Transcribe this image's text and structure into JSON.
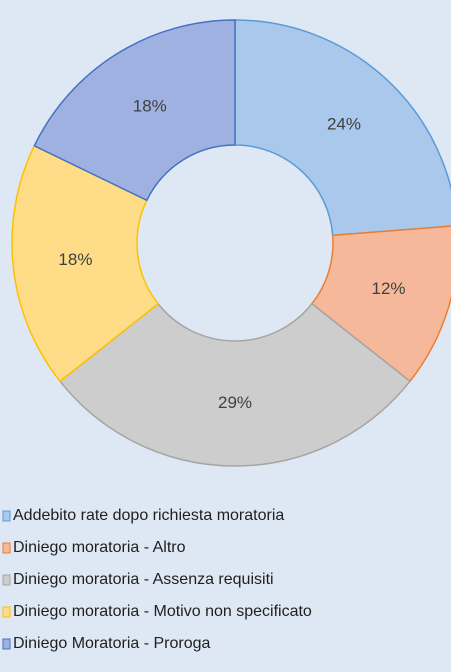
{
  "chart_data": {
    "type": "donut",
    "categories": [
      "Addebito rate dopo richiesta moratoria",
      "Diniego moratoria - Altro",
      "Diniego moratoria - Assenza requisiti",
      "Diniego moratoria - Motivo non specificato",
      "Diniego Moratoria - Proroga"
    ],
    "values": [
      24,
      12,
      29,
      18,
      18
    ],
    "value_labels": [
      "24%",
      "12%",
      "29%",
      "18%",
      "18%"
    ],
    "colors": [
      "#a9c8eb",
      "#f5b89b",
      "#cdcdcd",
      "#ffdd88",
      "#9fb1e0"
    ],
    "edgecolors": [
      "#5b9bd5",
      "#ed7d31",
      "#a5a5a5",
      "#ffc000",
      "#4472c4"
    ]
  }
}
